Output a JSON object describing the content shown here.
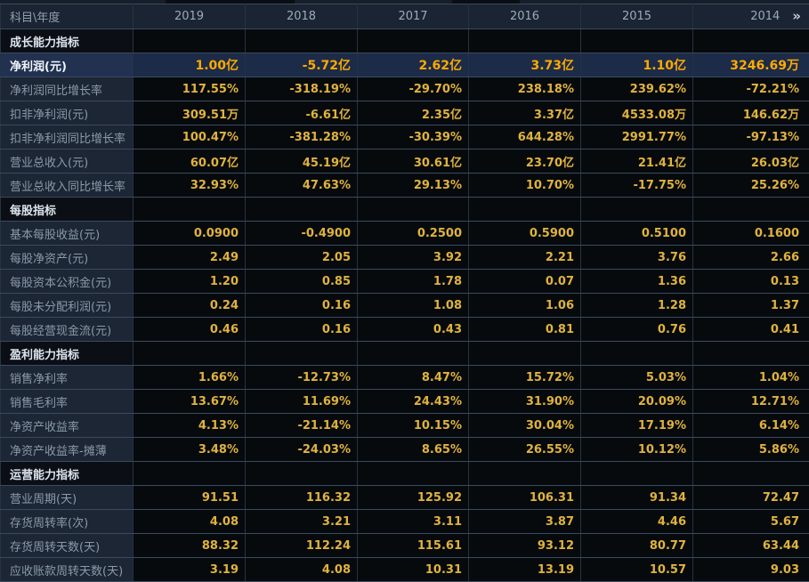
{
  "colors": {
    "background": "#070a0d",
    "header_bg": "#1a2432",
    "label_cell_bg": "#1c2634",
    "label_text": "#8b99aa",
    "value_text": "#e0b33e",
    "highlight_row_bg": "#1c2b47",
    "highlight_value_text": "#ffaa00",
    "section_text": "#dce4ee",
    "gridline_horizontal": "#3a4a5f",
    "gridline_vertical": "#253342"
  },
  "table": {
    "corner_header": "科目\\年度",
    "years": [
      "2019",
      "2018",
      "2017",
      "2016",
      "2015",
      "2014"
    ],
    "more_years_icon": "»",
    "rows": [
      {
        "type": "section",
        "label": "成长能力指标"
      },
      {
        "type": "data",
        "highlight": true,
        "label": "净利润(元)",
        "values": [
          "1.00亿",
          "-5.72亿",
          "2.62亿",
          "3.73亿",
          "1.10亿",
          "3246.69万"
        ]
      },
      {
        "type": "data",
        "label": "净利润同比增长率",
        "values": [
          "117.55%",
          "-318.19%",
          "-29.70%",
          "238.18%",
          "239.62%",
          "-72.21%"
        ]
      },
      {
        "type": "data",
        "label": "扣非净利润(元)",
        "values": [
          "309.51万",
          "-6.61亿",
          "2.35亿",
          "3.37亿",
          "4533.08万",
          "146.62万"
        ]
      },
      {
        "type": "data",
        "label": "扣非净利润同比增长率",
        "values": [
          "100.47%",
          "-381.28%",
          "-30.39%",
          "644.28%",
          "2991.77%",
          "-97.13%"
        ]
      },
      {
        "type": "data",
        "label": "营业总收入(元)",
        "values": [
          "60.07亿",
          "45.19亿",
          "30.61亿",
          "23.70亿",
          "21.41亿",
          "26.03亿"
        ]
      },
      {
        "type": "data",
        "label": "营业总收入同比增长率",
        "values": [
          "32.93%",
          "47.63%",
          "29.13%",
          "10.70%",
          "-17.75%",
          "25.26%"
        ]
      },
      {
        "type": "section",
        "label": "每股指标"
      },
      {
        "type": "data",
        "label": "基本每股收益(元)",
        "values": [
          "0.0900",
          "-0.4900",
          "0.2500",
          "0.5900",
          "0.5100",
          "0.1600"
        ]
      },
      {
        "type": "data",
        "label": "每股净资产(元)",
        "values": [
          "2.49",
          "2.05",
          "3.92",
          "2.21",
          "3.76",
          "2.66"
        ]
      },
      {
        "type": "data",
        "label": "每股资本公积金(元)",
        "values": [
          "1.20",
          "0.85",
          "1.78",
          "0.07",
          "1.36",
          "0.13"
        ]
      },
      {
        "type": "data",
        "label": "每股未分配利润(元)",
        "values": [
          "0.24",
          "0.16",
          "1.08",
          "1.06",
          "1.28",
          "1.37"
        ]
      },
      {
        "type": "data",
        "label": "每股经营现金流(元)",
        "values": [
          "0.46",
          "0.16",
          "0.43",
          "0.81",
          "0.76",
          "0.41"
        ]
      },
      {
        "type": "section",
        "label": "盈利能力指标"
      },
      {
        "type": "data",
        "label": "销售净利率",
        "values": [
          "1.66%",
          "-12.73%",
          "8.47%",
          "15.72%",
          "5.03%",
          "1.04%"
        ]
      },
      {
        "type": "data",
        "label": "销售毛利率",
        "values": [
          "13.67%",
          "11.69%",
          "24.43%",
          "31.90%",
          "20.09%",
          "12.71%"
        ]
      },
      {
        "type": "data",
        "label": "净资产收益率",
        "values": [
          "4.13%",
          "-21.14%",
          "10.15%",
          "30.04%",
          "17.19%",
          "6.14%"
        ]
      },
      {
        "type": "data",
        "label": "净资产收益率-摊薄",
        "values": [
          "3.48%",
          "-24.03%",
          "8.65%",
          "26.55%",
          "10.12%",
          "5.86%"
        ]
      },
      {
        "type": "section",
        "label": "运营能力指标"
      },
      {
        "type": "data",
        "label": "营业周期(天)",
        "values": [
          "91.51",
          "116.32",
          "125.92",
          "106.31",
          "91.34",
          "72.47"
        ]
      },
      {
        "type": "data",
        "label": "存货周转率(次)",
        "values": [
          "4.08",
          "3.21",
          "3.11",
          "3.87",
          "4.46",
          "5.67"
        ]
      },
      {
        "type": "data",
        "label": "存货周转天数(天)",
        "values": [
          "88.32",
          "112.24",
          "115.61",
          "93.12",
          "80.77",
          "63.44"
        ]
      },
      {
        "type": "data",
        "label": "应收账款周转天数(天)",
        "values": [
          "3.19",
          "4.08",
          "10.31",
          "13.19",
          "10.57",
          "9.03"
        ]
      }
    ]
  }
}
